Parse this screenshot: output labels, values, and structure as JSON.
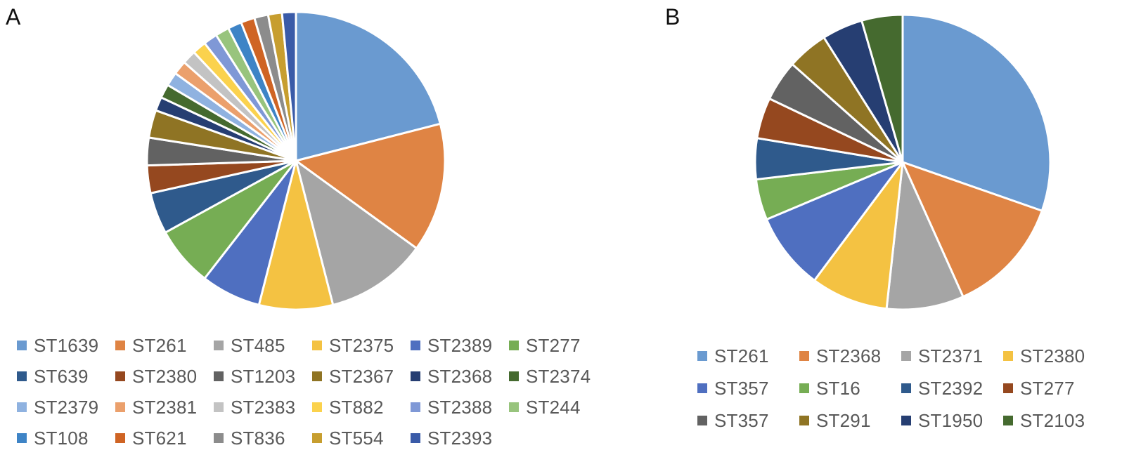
{
  "chart_data": [
    {
      "type": "pie",
      "panel_label": "A",
      "title": "",
      "slices": [
        {
          "label": "ST1639",
          "value": 21,
          "color": "#6a9ad0"
        },
        {
          "label": "ST261",
          "value": 14,
          "color": "#df8444"
        },
        {
          "label": "ST485",
          "value": 11,
          "color": "#a5a5a5"
        },
        {
          "label": "ST2375",
          "value": 8,
          "color": "#f4c242"
        },
        {
          "label": "ST2389",
          "value": 6.5,
          "color": "#4f6fc0"
        },
        {
          "label": "ST277",
          "value": 6.5,
          "color": "#76ad54"
        },
        {
          "label": "ST639",
          "value": 4.5,
          "color": "#2f5a8c"
        },
        {
          "label": "ST2380",
          "value": 3,
          "color": "#95481f"
        },
        {
          "label": "ST1203",
          "value": 3,
          "color": "#626262"
        },
        {
          "label": "ST2367",
          "value": 3,
          "color": "#8f7424"
        },
        {
          "label": "ST2368",
          "value": 1.5,
          "color": "#263e72"
        },
        {
          "label": "ST2374",
          "value": 1.5,
          "color": "#456a2f"
        },
        {
          "label": "ST2379",
          "value": 1.5,
          "color": "#8fb2e0"
        },
        {
          "label": "ST2381",
          "value": 1.5,
          "color": "#eba06c"
        },
        {
          "label": "ST2383",
          "value": 1.5,
          "color": "#c3c3c3"
        },
        {
          "label": "ST882",
          "value": 1.5,
          "color": "#fbd24d"
        },
        {
          "label": "ST2388",
          "value": 1.5,
          "color": "#7f98d6"
        },
        {
          "label": "ST244",
          "value": 1.5,
          "color": "#98c47d"
        },
        {
          "label": "ST108",
          "value": 1.5,
          "color": "#3e84c6"
        },
        {
          "label": "ST621",
          "value": 1.5,
          "color": "#cf6424"
        },
        {
          "label": "ST836",
          "value": 1.5,
          "color": "#8c8c8c"
        },
        {
          "label": "ST554",
          "value": 1.5,
          "color": "#c79e2f"
        },
        {
          "label": "ST2393",
          "value": 1.5,
          "color": "#3a5ba8"
        }
      ]
    },
    {
      "type": "pie",
      "panel_label": "B",
      "title": "",
      "slices": [
        {
          "label": "ST261",
          "value": 30.5,
          "color": "#6a9ad0"
        },
        {
          "label": "ST2368",
          "value": 13,
          "color": "#df8444"
        },
        {
          "label": "ST2371",
          "value": 8.5,
          "color": "#a5a5a5"
        },
        {
          "label": "ST2380",
          "value": 8.5,
          "color": "#f4c242"
        },
        {
          "label": "ST357",
          "value": 8.5,
          "color": "#4f6fc0"
        },
        {
          "label": "ST16",
          "value": 4.5,
          "color": "#76ad54"
        },
        {
          "label": "ST2392",
          "value": 4.5,
          "color": "#2f5a8c"
        },
        {
          "label": "ST277",
          "value": 4.5,
          "color": "#95481f"
        },
        {
          "label": "ST357",
          "value": 4.5,
          "color": "#626262"
        },
        {
          "label": "ST291",
          "value": 4.5,
          "color": "#8f7424"
        },
        {
          "label": "ST1950",
          "value": 4.5,
          "color": "#263e72"
        },
        {
          "label": "ST2103",
          "value": 4.5,
          "color": "#456a2f"
        }
      ]
    }
  ]
}
